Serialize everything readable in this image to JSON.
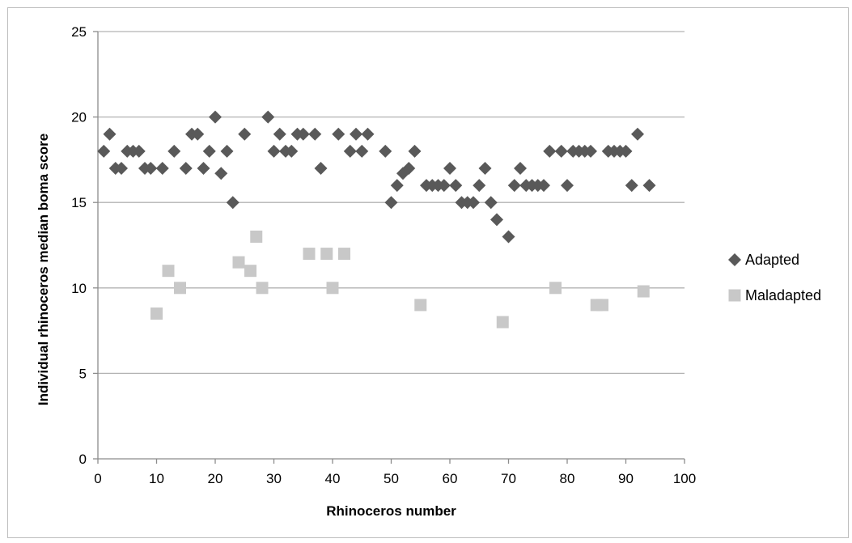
{
  "chart_data": {
    "type": "scatter",
    "xlabel": "Rhinoceros number",
    "ylabel": "Individual rhinoceros median boma score",
    "xlim": [
      0,
      100
    ],
    "ylim": [
      0,
      25
    ],
    "xticks": [
      0,
      10,
      20,
      30,
      40,
      50,
      60,
      70,
      80,
      90,
      100
    ],
    "yticks": [
      0,
      5,
      10,
      15,
      20,
      25
    ],
    "grid": "horizontal",
    "legend_position": "right",
    "series": [
      {
        "name": "Adapted",
        "marker": "diamond",
        "color": "#595959",
        "points": [
          [
            1,
            18
          ],
          [
            2,
            19
          ],
          [
            3,
            17
          ],
          [
            4,
            17
          ],
          [
            5,
            18
          ],
          [
            6,
            18
          ],
          [
            7,
            18
          ],
          [
            8,
            17
          ],
          [
            9,
            17
          ],
          [
            11,
            17
          ],
          [
            13,
            18
          ],
          [
            15,
            17
          ],
          [
            16,
            19
          ],
          [
            17,
            19
          ],
          [
            18,
            17
          ],
          [
            19,
            18
          ],
          [
            20,
            20
          ],
          [
            21,
            16.7
          ],
          [
            22,
            18
          ],
          [
            23,
            15
          ],
          [
            25,
            19
          ],
          [
            29,
            20
          ],
          [
            30,
            18
          ],
          [
            31,
            19
          ],
          [
            32,
            18
          ],
          [
            33,
            18
          ],
          [
            34,
            19
          ],
          [
            35,
            19
          ],
          [
            37,
            19
          ],
          [
            38,
            17
          ],
          [
            41,
            19
          ],
          [
            43,
            18
          ],
          [
            44,
            19
          ],
          [
            45,
            18
          ],
          [
            46,
            19
          ],
          [
            49,
            18
          ],
          [
            50,
            15
          ],
          [
            51,
            16
          ],
          [
            52,
            16.7
          ],
          [
            53,
            17
          ],
          [
            54,
            18
          ],
          [
            56,
            16
          ],
          [
            57,
            16
          ],
          [
            58,
            16
          ],
          [
            59,
            16
          ],
          [
            60,
            17
          ],
          [
            61,
            16
          ],
          [
            62,
            15
          ],
          [
            63,
            15
          ],
          [
            64,
            15
          ],
          [
            65,
            16
          ],
          [
            66,
            17
          ],
          [
            67,
            15
          ],
          [
            68,
            14
          ],
          [
            70,
            13
          ],
          [
            71,
            16
          ],
          [
            72,
            17
          ],
          [
            73,
            16
          ],
          [
            74,
            16
          ],
          [
            75,
            16
          ],
          [
            76,
            16
          ],
          [
            77,
            18
          ],
          [
            79,
            18
          ],
          [
            80,
            16
          ],
          [
            81,
            18
          ],
          [
            82,
            18
          ],
          [
            83,
            18
          ],
          [
            84,
            18
          ],
          [
            87,
            18
          ],
          [
            88,
            18
          ],
          [
            89,
            18
          ],
          [
            90,
            18
          ],
          [
            91,
            16
          ],
          [
            92,
            19
          ],
          [
            94,
            16
          ]
        ]
      },
      {
        "name": "Maladapted",
        "marker": "square",
        "color": "#c8c8c8",
        "points": [
          [
            10,
            8.5
          ],
          [
            12,
            11
          ],
          [
            14,
            10
          ],
          [
            24,
            11.5
          ],
          [
            26,
            11
          ],
          [
            27,
            13
          ],
          [
            28,
            10
          ],
          [
            36,
            12
          ],
          [
            39,
            12
          ],
          [
            40,
            10
          ],
          [
            42,
            12
          ],
          [
            55,
            9
          ],
          [
            69,
            8
          ],
          [
            78,
            10
          ],
          [
            85,
            9
          ],
          [
            86,
            9
          ],
          [
            93,
            9.8
          ]
        ]
      }
    ]
  }
}
